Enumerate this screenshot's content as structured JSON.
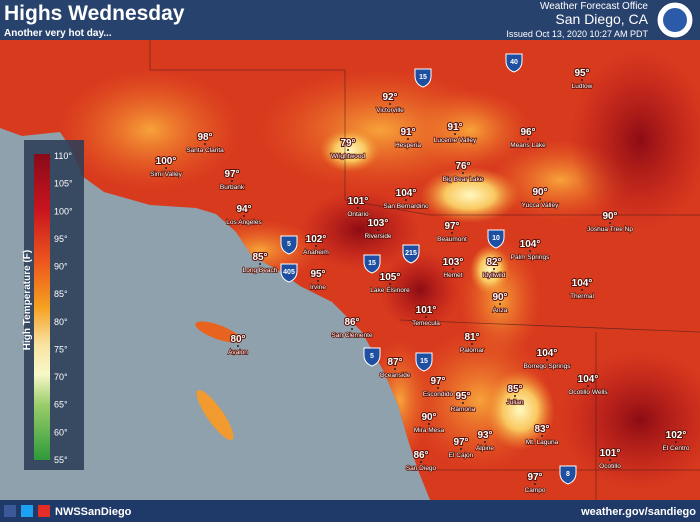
{
  "header": {
    "title": "Highs Wednesday",
    "subtitle": "Another very hot day...",
    "office": "Weather Forecast Office",
    "location": "San Diego, CA",
    "issued": "Issued Oct 13, 2020 10:27 AM PDT"
  },
  "legend": {
    "title": "High Temperature (F)",
    "labels": [
      "110°",
      "105°",
      "100°",
      "95°",
      "90°",
      "85°",
      "80°",
      "75°",
      "70°",
      "65°",
      "60°",
      "55°"
    ]
  },
  "cities": [
    {
      "temp": "98°",
      "name": "Santa Clarita"
    },
    {
      "temp": "100°",
      "name": "Simi Valley"
    },
    {
      "temp": "97°",
      "name": "Burbank"
    },
    {
      "temp": "94°",
      "name": "Los Angeles"
    },
    {
      "temp": "85°",
      "name": "Long Beach"
    },
    {
      "temp": "102°",
      "name": "Anaheim"
    },
    {
      "temp": "95°",
      "name": "Irvine"
    },
    {
      "temp": "79°",
      "name": "Wrightwood"
    },
    {
      "temp": "92°",
      "name": "Victorville"
    },
    {
      "temp": "91°",
      "name": "Hesperia"
    },
    {
      "temp": "91°",
      "name": "Lucerne Valley"
    },
    {
      "temp": "96°",
      "name": "Means Lake"
    },
    {
      "temp": "95°",
      "name": "Ludlow"
    },
    {
      "temp": "76°",
      "name": "Big Bear Lake"
    },
    {
      "temp": "101°",
      "name": "Ontario"
    },
    {
      "temp": "104°",
      "name": "San Bernardino"
    },
    {
      "temp": "103°",
      "name": "Riverside"
    },
    {
      "temp": "97°",
      "name": "Beaumont"
    },
    {
      "temp": "90°",
      "name": "Yucca Valley"
    },
    {
      "temp": "90°",
      "name": "Joshua Tree Np"
    },
    {
      "temp": "104°",
      "name": "Palm Springs"
    },
    {
      "temp": "103°",
      "name": "Hemet"
    },
    {
      "temp": "82°",
      "name": "Idyllwild"
    },
    {
      "temp": "105°",
      "name": "Lake Elsinore"
    },
    {
      "temp": "104°",
      "name": "Thermal"
    },
    {
      "temp": "90°",
      "name": "Anza"
    },
    {
      "temp": "101°",
      "name": "Temecula"
    },
    {
      "temp": "86°",
      "name": "San Clemente"
    },
    {
      "temp": "81°",
      "name": "Palomar"
    },
    {
      "temp": "80°",
      "name": "Avalon"
    },
    {
      "temp": "104°",
      "name": "Borrego Springs"
    },
    {
      "temp": "87°",
      "name": "Oceanside"
    },
    {
      "temp": "97°",
      "name": "Escondido"
    },
    {
      "temp": "104°",
      "name": "Ocotillo Wells"
    },
    {
      "temp": "95°",
      "name": "Ramona"
    },
    {
      "temp": "85°",
      "name": "Julian"
    },
    {
      "temp": "90°",
      "name": "Mira Mesa"
    },
    {
      "temp": "83°",
      "name": "Mt. Laguna"
    },
    {
      "temp": "97°",
      "name": "El Cajon"
    },
    {
      "temp": "93°",
      "name": "Alpine"
    },
    {
      "temp": "86°",
      "name": "San Diego"
    },
    {
      "temp": "102°",
      "name": "El Centro"
    },
    {
      "temp": "101°",
      "name": "Ocotillo"
    },
    {
      "temp": "97°",
      "name": "Campo"
    }
  ],
  "highways": [
    "15",
    "40",
    "5",
    "405",
    "15",
    "215",
    "10",
    "5",
    "15",
    "8"
  ],
  "footer": {
    "handle": "NWSSanDiego",
    "url": "weather.gov/sandiego"
  }
}
